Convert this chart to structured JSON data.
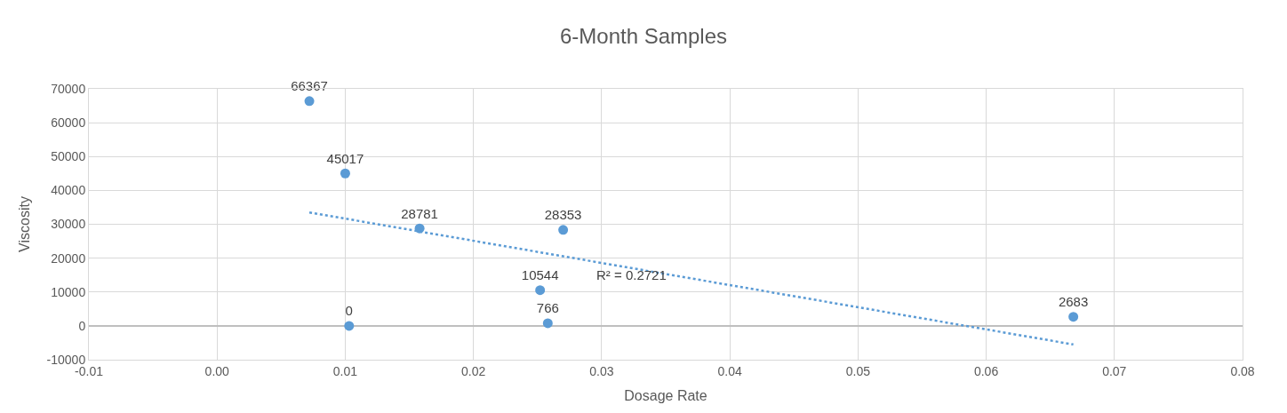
{
  "chart_data": {
    "type": "scatter",
    "title": "6-Month Samples",
    "xlabel": "Dosage Rate",
    "ylabel": "Viscosity",
    "xlim": [
      -0.01,
      0.08
    ],
    "xticks": [
      {
        "value": -0.01,
        "label": "-0.01"
      },
      {
        "value": 0,
        "label": "0.00"
      },
      {
        "value": 0.01,
        "label": "0.01"
      },
      {
        "value": 0.02,
        "label": "0.02"
      },
      {
        "value": 0.03,
        "label": "0.03"
      },
      {
        "value": 0.04,
        "label": "0.04"
      },
      {
        "value": 0.05,
        "label": "0.05"
      },
      {
        "value": 0.06,
        "label": "0.06"
      },
      {
        "value": 0.07,
        "label": "0.07"
      },
      {
        "value": 0.08,
        "label": "0.08"
      }
    ],
    "ylim": [
      -10000,
      70000
    ],
    "yticks": [
      -10000,
      0,
      10000,
      20000,
      30000,
      40000,
      50000,
      60000,
      70000
    ],
    "grid": true,
    "marker": "circle",
    "annotations": [
      "R² = 0.2721"
    ],
    "series": [
      {
        "color": "#5b9bd5",
        "x": [
          0.0072,
          0.01,
          0.0103,
          0.0158,
          0.0252,
          0.0258,
          0.027,
          0.0668
        ],
        "values": [
          66367,
          45017,
          0,
          28781,
          10544,
          766,
          28353,
          2683
        ],
        "value_labels": [
          "66367",
          "45017",
          "0",
          "28781",
          "10544",
          "766",
          "28353",
          "2683"
        ]
      },
      {
        "type": "line",
        "line_style": "dotted",
        "marker": "none",
        "color": "#5b9bd5",
        "x": [
          0.0072,
          0.0668
        ],
        "values": [
          33500,
          -5500
        ]
      }
    ]
  }
}
